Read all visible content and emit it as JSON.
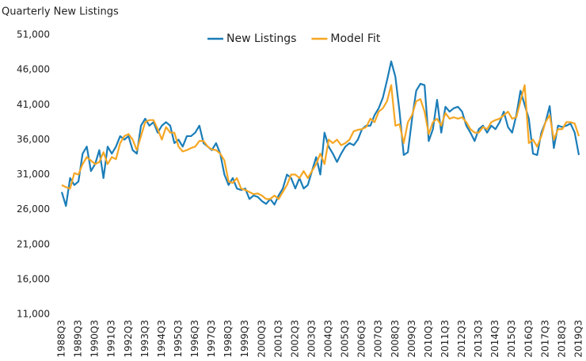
{
  "chart_data": {
    "type": "line",
    "title": "Quarterly New Listings",
    "categories": [
      "1988Q3",
      null,
      null,
      null,
      "1989Q3",
      null,
      null,
      null,
      "1990Q3",
      null,
      null,
      null,
      "1991Q3",
      null,
      null,
      null,
      "1992Q3",
      null,
      null,
      null,
      "1993Q3",
      null,
      null,
      null,
      "1994Q3",
      null,
      null,
      null,
      "1995Q3",
      null,
      null,
      null,
      "1996Q3",
      null,
      null,
      null,
      "1997Q3",
      null,
      null,
      null,
      "1998Q3",
      null,
      null,
      null,
      "1999Q3",
      null,
      null,
      null,
      "2000Q3",
      null,
      null,
      null,
      "2001Q3",
      null,
      null,
      null,
      "2002Q3",
      null,
      null,
      null,
      "2003Q3",
      null,
      null,
      null,
      "2004Q3",
      null,
      null,
      null,
      "2005Q3",
      null,
      null,
      null,
      "2006Q3",
      null,
      null,
      null,
      "2007Q3",
      null,
      null,
      null,
      "2008Q3",
      null,
      null,
      null,
      "2009Q3",
      null,
      null,
      null,
      "2010Q3",
      null,
      null,
      null,
      "2011Q3",
      null,
      null,
      null,
      "2012Q3",
      null,
      null,
      null,
      "2013Q3",
      null,
      null,
      null,
      "2014Q3",
      null,
      null,
      null,
      "2015Q3",
      null,
      null,
      null,
      "2016Q3",
      null,
      null,
      null,
      "2017Q3",
      null,
      null,
      null,
      "2018Q3",
      null,
      null,
      null,
      "2019Q3"
    ],
    "series": [
      {
        "name": "New Listings",
        "color": "#1b7db8",
        "values": [
          28500,
          26500,
          30500,
          29500,
          30000,
          34000,
          35000,
          31500,
          32500,
          34500,
          30500,
          35000,
          34000,
          35000,
          36500,
          36000,
          36500,
          34500,
          34000,
          38000,
          39000,
          38000,
          38500,
          37000,
          38000,
          38500,
          38000,
          35500,
          36000,
          35000,
          36500,
          36500,
          37000,
          38000,
          35500,
          35000,
          34500,
          35500,
          34000,
          31000,
          29500,
          30500,
          29000,
          28800,
          29000,
          27500,
          28000,
          27800,
          27200,
          26800,
          27500,
          26700,
          28000,
          29000,
          31000,
          30500,
          29000,
          30500,
          29000,
          29500,
          31500,
          33500,
          31000,
          37000,
          35000,
          34000,
          32800,
          34000,
          35000,
          35500,
          35200,
          36000,
          37500,
          38000,
          38000,
          39500,
          40500,
          42000,
          44500,
          47200,
          45000,
          40000,
          33800,
          34200,
          39000,
          43000,
          44000,
          43800,
          35800,
          37500,
          41700,
          37000,
          40700,
          40000,
          40500,
          40700,
          40000,
          38000,
          37000,
          35800,
          37500,
          38000,
          37000,
          38000,
          37500,
          38500,
          40000,
          37800,
          37000,
          39500,
          43000,
          41000,
          39000,
          34000,
          33800,
          37000,
          38500,
          40800,
          34800,
          38000,
          37800,
          38000,
          38300,
          37000,
          33800
        ]
      },
      {
        "name": "Model Fit",
        "color": "#f5a623",
        "values": [
          29500,
          29200,
          29000,
          31200,
          31000,
          32500,
          33500,
          33000,
          32500,
          32800,
          34200,
          32500,
          33500,
          33200,
          35500,
          36500,
          36800,
          36000,
          34500,
          36500,
          38500,
          38800,
          38800,
          37500,
          36000,
          37800,
          37000,
          37000,
          35000,
          34300,
          34500,
          34800,
          35000,
          35800,
          35800,
          35000,
          34600,
          34500,
          34000,
          33000,
          30000,
          29800,
          30500,
          29000,
          28800,
          28500,
          28200,
          28300,
          28000,
          27500,
          27500,
          28000,
          27500,
          28500,
          29500,
          31000,
          31000,
          30500,
          31500,
          30500,
          31500,
          32500,
          34000,
          32500,
          36000,
          35500,
          36000,
          35200,
          35500,
          36000,
          37200,
          37400,
          37500,
          37800,
          39000,
          38500,
          40000,
          40500,
          41500,
          43800,
          38000,
          38200,
          35500,
          38500,
          39500,
          41500,
          41800,
          40000,
          36800,
          38500,
          39000,
          38000,
          39800,
          39000,
          39200,
          39000,
          39200,
          38500,
          37500,
          37000,
          37000,
          37800,
          37500,
          38500,
          38800,
          39000,
          39500,
          40000,
          39000,
          39200,
          41500,
          43800,
          35500,
          36000,
          35000,
          36500,
          38500,
          39500,
          36000,
          37500,
          37500,
          38500,
          38500,
          38300,
          36500
        ]
      }
    ],
    "ylim": [
      11000,
      51000
    ],
    "yticks": [
      {
        "value": 11000,
        "label": "11,000"
      },
      {
        "value": 16000,
        "label": "16,000"
      },
      {
        "value": 21000,
        "label": "21,000"
      },
      {
        "value": 26000,
        "label": "26,000"
      },
      {
        "value": 31000,
        "label": "31,000"
      },
      {
        "value": 36000,
        "label": "36,000"
      },
      {
        "value": 41000,
        "label": "41,000"
      },
      {
        "value": 46000,
        "label": "46,000"
      },
      {
        "value": 51000,
        "label": "51,000"
      }
    ],
    "grid": false,
    "legend": "top"
  }
}
